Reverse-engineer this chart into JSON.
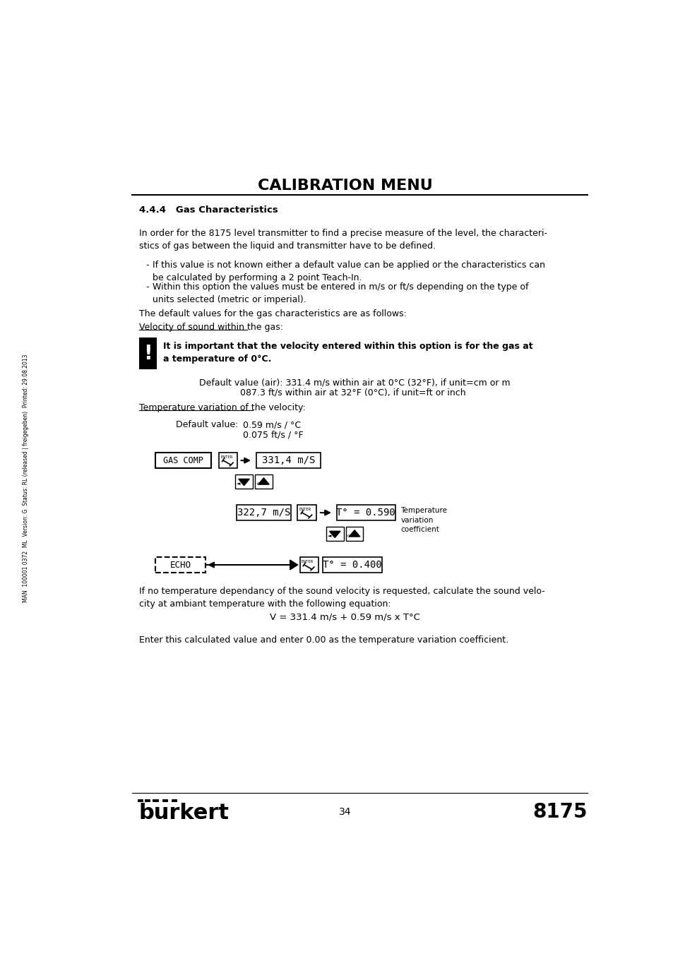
{
  "title": "CALIBRATION MENU",
  "section": "4.4.4   Gas Characteristics",
  "para1": "In order for the 8175 level transmitter to find a precise measure of the level, the characteri-\nstics of gas between the liquid and transmitter have to be defined.",
  "bullet1": "If this value is not known either a default value can be applied or the characteristics can\nbe calculated by performing a 2 point Teach-In.",
  "bullet2": "Within this option the values must be entered in m/s or ft/s depending on the type of\nunits selected (metric or imperial).",
  "para2": "The default values for the gas characteristics are as follows:",
  "underline1": "Velocity of sound within the gas:",
  "warning_text": "It is important that the velocity entered within this option is for the gas at\na temperature of 0°C.",
  "default_air1": "Default value (air): 331.4 m/s within air at 0°C (32°F), if unit=cm or m",
  "default_air2": "087.3 ft/s within air at 32°F (0°C), if unit=ft or inch",
  "underline2": "Temperature variation of the velocity:",
  "default_val_label": "Default value:",
  "default_val1": "0.59 m/s / °C",
  "default_val2": "0.075 ft/s / °F",
  "diag_box1": "GAS COMP",
  "diag_display1": "331,4 m/S",
  "diag_display2": "322,7 m/S",
  "diag_display3": "T° = 0.590",
  "diag_display4": "T° = 0.400",
  "diag_echo": "ECHO",
  "temp_var_label": "Temperature\nvariation\ncoefficient",
  "para3": "If no temperature dependancy of the sound velocity is requested, calculate the sound velo-\ncity at ambiant temperature with the following equation:",
  "equation": "V = 331.4 m/s + 0.59 m/s x T°C",
  "para4": "Enter this calculated value and enter 0.00 as the temperature variation coefficient.",
  "footer_page": "34",
  "footer_model": "8175",
  "footer_brand": "burkert",
  "sidebar_text": "MAN  100001 0372  ML  Version: G  Status: RL (released | freigegeben)  Printed: 29.08.2013",
  "bg_color": "#ffffff",
  "text_color": "#000000",
  "sidebar_color": "#000000"
}
